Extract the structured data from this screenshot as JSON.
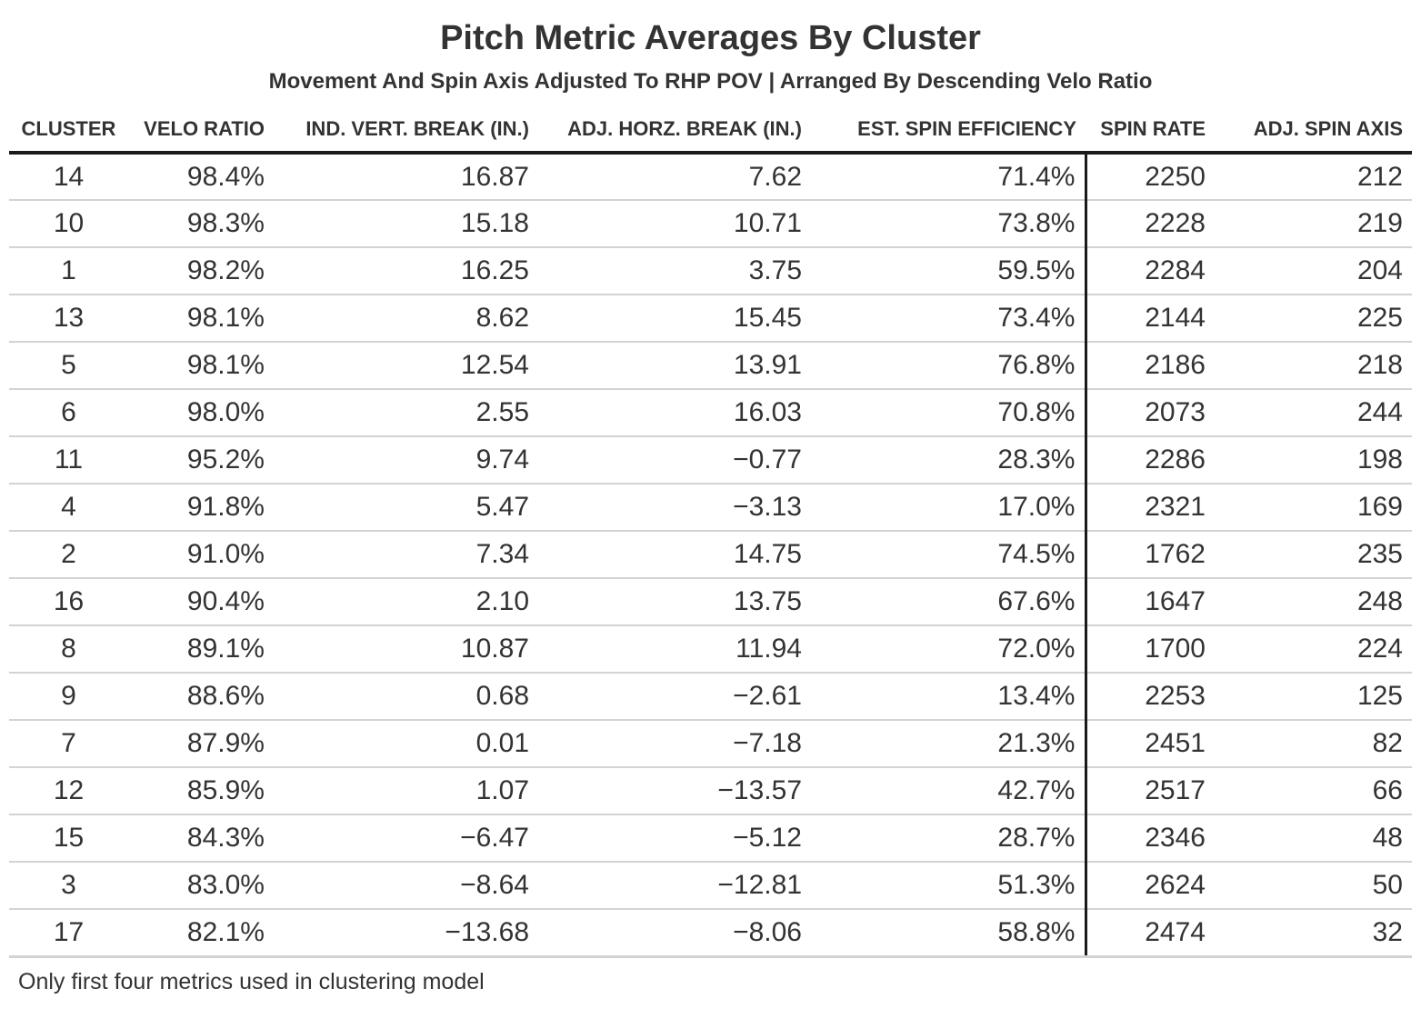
{
  "chart_data": {
    "type": "table",
    "title": "Pitch Metric Averages By Cluster",
    "subtitle": "Movement And Spin Axis Adjusted To RHP POV | Arranged By Descending Velo Ratio",
    "columns": [
      "CLUSTER",
      "VELO RATIO",
      "IND. VERT. BREAK (IN.)",
      "ADJ. HORZ. BREAK (IN.)",
      "EST. SPIN EFFICIENCY",
      "SPIN RATE",
      "ADJ. SPIN AXIS"
    ],
    "rows": [
      [
        "14",
        "98.4%",
        "16.87",
        "7.62",
        "71.4%",
        "2250",
        "212"
      ],
      [
        "10",
        "98.3%",
        "15.18",
        "10.71",
        "73.8%",
        "2228",
        "219"
      ],
      [
        "1",
        "98.2%",
        "16.25",
        "3.75",
        "59.5%",
        "2284",
        "204"
      ],
      [
        "13",
        "98.1%",
        "8.62",
        "15.45",
        "73.4%",
        "2144",
        "225"
      ],
      [
        "5",
        "98.1%",
        "12.54",
        "13.91",
        "76.8%",
        "2186",
        "218"
      ],
      [
        "6",
        "98.0%",
        "2.55",
        "16.03",
        "70.8%",
        "2073",
        "244"
      ],
      [
        "11",
        "95.2%",
        "9.74",
        "−0.77",
        "28.3%",
        "2286",
        "198"
      ],
      [
        "4",
        "91.8%",
        "5.47",
        "−3.13",
        "17.0%",
        "2321",
        "169"
      ],
      [
        "2",
        "91.0%",
        "7.34",
        "14.75",
        "74.5%",
        "1762",
        "235"
      ],
      [
        "16",
        "90.4%",
        "2.10",
        "13.75",
        "67.6%",
        "1647",
        "248"
      ],
      [
        "8",
        "89.1%",
        "10.87",
        "11.94",
        "72.0%",
        "1700",
        "224"
      ],
      [
        "9",
        "88.6%",
        "0.68",
        "−2.61",
        "13.4%",
        "2253",
        "125"
      ],
      [
        "7",
        "87.9%",
        "0.01",
        "−7.18",
        "21.3%",
        "2451",
        "82"
      ],
      [
        "12",
        "85.9%",
        "1.07",
        "−13.57",
        "42.7%",
        "2517",
        "66"
      ],
      [
        "15",
        "84.3%",
        "−6.47",
        "−5.12",
        "28.7%",
        "2346",
        "48"
      ],
      [
        "3",
        "83.0%",
        "−8.64",
        "−12.81",
        "51.3%",
        "2624",
        "50"
      ],
      [
        "17",
        "82.1%",
        "−13.68",
        "−8.06",
        "58.8%",
        "2474",
        "32"
      ]
    ],
    "footnote": "Only first four metrics used in clustering model"
  }
}
